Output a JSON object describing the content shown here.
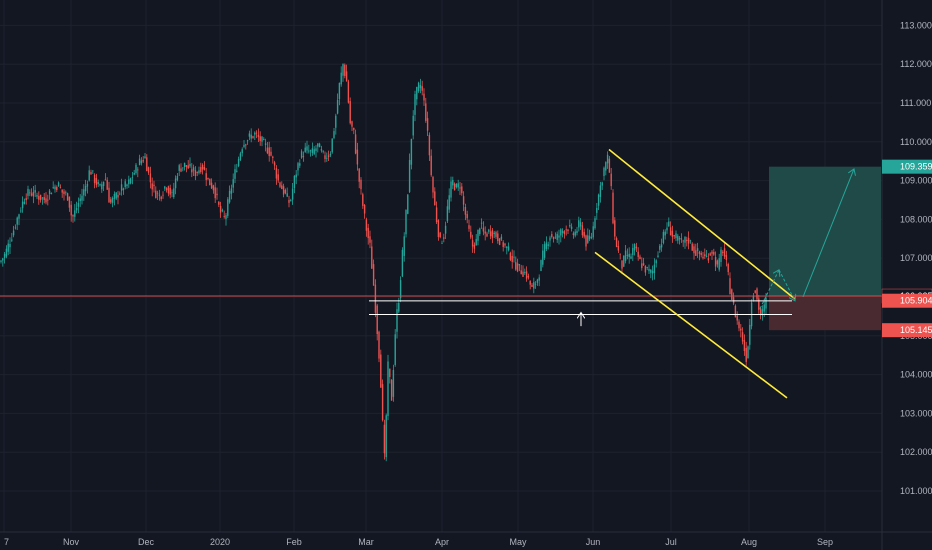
{
  "colors": {
    "background": "#131722",
    "grid": "#1e222d",
    "up": "#26a69a",
    "down": "#ef5350",
    "channel": "#ffeb3b",
    "target_zone": "#1f4a48",
    "stop_zone": "#4a2a31",
    "arrow": "#26a69a",
    "support_line": "#ffffff",
    "current_price_line": "#ef5350"
  },
  "chart_data": {
    "type": "candlestick",
    "title": "",
    "xlabel": "",
    "ylabel": "",
    "ylim": [
      100.2,
      113.4
    ],
    "y_ticks": [
      {
        "value": 101,
        "label": "101.000"
      },
      {
        "value": 102,
        "label": "102.000"
      },
      {
        "value": 103,
        "label": "103.000"
      },
      {
        "value": 104,
        "label": "104.000"
      },
      {
        "value": 105,
        "label": "105.000"
      },
      {
        "value": 106,
        "label": "106.000"
      },
      {
        "value": 107,
        "label": "107.000"
      },
      {
        "value": 108,
        "label": "108.000"
      },
      {
        "value": 109,
        "label": "109.000"
      },
      {
        "value": 110,
        "label": "110.000"
      },
      {
        "value": 111,
        "label": "111.000"
      },
      {
        "value": 112,
        "label": "112.000"
      },
      {
        "value": 113,
        "label": "113.000"
      }
    ],
    "x_ticks": [
      "7",
      "Nov",
      "Dec",
      "2020",
      "Feb",
      "Mar",
      "Apr",
      "May",
      "Jun",
      "Jul",
      "Aug",
      "Sep"
    ],
    "price_tags": [
      {
        "label": "109.359",
        "value": 109.359,
        "color": "#26a69a"
      },
      {
        "label": "106.025",
        "value": 106.025,
        "color": "#131722"
      },
      {
        "label": "105.904",
        "value": 105.904,
        "color": "#ef5350"
      },
      {
        "label": "105.145",
        "value": 105.145,
        "color": "#ef5350"
      }
    ],
    "price_path": [
      [
        0,
        106.9
      ],
      [
        5,
        107.1
      ],
      [
        12,
        107.6
      ],
      [
        18,
        108.1
      ],
      [
        25,
        108.6
      ],
      [
        30,
        108.7
      ],
      [
        38,
        108.6
      ],
      [
        45,
        108.5
      ],
      [
        52,
        108.8
      ],
      [
        58,
        108.9
      ],
      [
        62,
        108.7
      ],
      [
        68,
        108.6
      ],
      [
        72,
        108.0
      ],
      [
        78,
        108.4
      ],
      [
        85,
        108.8
      ],
      [
        90,
        109.3
      ],
      [
        95,
        109.0
      ],
      [
        100,
        108.8
      ],
      [
        105,
        109.1
      ],
      [
        110,
        108.4
      ],
      [
        116,
        108.6
      ],
      [
        122,
        108.8
      ],
      [
        128,
        108.9
      ],
      [
        134,
        109.2
      ],
      [
        140,
        109.5
      ],
      [
        145,
        109.6
      ],
      [
        150,
        109.0
      ],
      [
        155,
        108.7
      ],
      [
        160,
        108.6
      ],
      [
        166,
        108.9
      ],
      [
        172,
        108.6
      ],
      [
        178,
        109.3
      ],
      [
        185,
        109.4
      ],
      [
        190,
        109.3
      ],
      [
        196,
        109.2
      ],
      [
        202,
        109.4
      ],
      [
        208,
        109.0
      ],
      [
        214,
        108.8
      ],
      [
        220,
        108.2
      ],
      [
        225,
        108.0
      ],
      [
        230,
        108.7
      ],
      [
        236,
        109.3
      ],
      [
        242,
        109.9
      ],
      [
        248,
        110.1
      ],
      [
        255,
        110.2
      ],
      [
        262,
        110.0
      ],
      [
        268,
        109.8
      ],
      [
        272,
        109.6
      ],
      [
        278,
        109.0
      ],
      [
        284,
        108.7
      ],
      [
        290,
        108.4
      ],
      [
        294,
        109.0
      ],
      [
        300,
        109.6
      ],
      [
        306,
        109.8
      ],
      [
        312,
        109.7
      ],
      [
        318,
        109.9
      ],
      [
        324,
        109.6
      ],
      [
        330,
        109.7
      ],
      [
        335,
        110.5
      ],
      [
        339,
        111.4
      ],
      [
        343,
        112.0
      ],
      [
        347,
        111.5
      ],
      [
        350,
        110.5
      ],
      [
        354,
        110.2
      ],
      [
        358,
        109.2
      ],
      [
        362,
        108.5
      ],
      [
        366,
        107.8
      ],
      [
        370,
        107.3
      ],
      [
        374,
        106.2
      ],
      [
        377,
        105.2
      ],
      [
        380,
        104.2
      ],
      [
        382,
        103.2
      ],
      [
        384,
        101.6
      ],
      [
        386,
        102.8
      ],
      [
        388,
        104.2
      ],
      [
        390,
        103.8
      ],
      [
        392,
        103.3
      ],
      [
        394,
        104.6
      ],
      [
        396,
        105.4
      ],
      [
        399,
        106.0
      ],
      [
        402,
        107.0
      ],
      [
        405,
        107.8
      ],
      [
        408,
        108.8
      ],
      [
        411,
        110.0
      ],
      [
        414,
        111.0
      ],
      [
        417,
        111.3
      ],
      [
        420,
        111.5
      ],
      [
        423,
        111.2
      ],
      [
        426,
        110.6
      ],
      [
        429,
        109.8
      ],
      [
        432,
        108.9
      ],
      [
        436,
        108.1
      ],
      [
        440,
        107.4
      ],
      [
        444,
        107.6
      ],
      [
        448,
        108.4
      ],
      [
        452,
        109.0
      ],
      [
        456,
        108.8
      ],
      [
        460,
        108.9
      ],
      [
        464,
        108.3
      ],
      [
        468,
        107.8
      ],
      [
        472,
        107.3
      ],
      [
        476,
        107.4
      ],
      [
        480,
        107.9
      ],
      [
        484,
        107.6
      ],
      [
        490,
        107.7
      ],
      [
        496,
        107.6
      ],
      [
        502,
        107.4
      ],
      [
        508,
        107.2
      ],
      [
        514,
        106.9
      ],
      [
        520,
        106.7
      ],
      [
        526,
        106.6
      ],
      [
        532,
        106.2
      ],
      [
        538,
        106.5
      ],
      [
        544,
        107.2
      ],
      [
        550,
        107.6
      ],
      [
        556,
        107.5
      ],
      [
        562,
        107.7
      ],
      [
        568,
        107.8
      ],
      [
        574,
        107.6
      ],
      [
        580,
        107.9
      ],
      [
        586,
        107.4
      ],
      [
        592,
        107.6
      ],
      [
        596,
        108.3
      ],
      [
        600,
        108.8
      ],
      [
        604,
        109.3
      ],
      [
        608,
        109.6
      ],
      [
        611,
        108.8
      ],
      [
        614,
        107.6
      ],
      [
        618,
        107.2
      ],
      [
        622,
        106.8
      ],
      [
        626,
        107.1
      ],
      [
        630,
        107.0
      ],
      [
        634,
        107.3
      ],
      [
        640,
        106.9
      ],
      [
        646,
        106.7
      ],
      [
        652,
        106.6
      ],
      [
        658,
        107.2
      ],
      [
        664,
        107.6
      ],
      [
        668,
        107.9
      ],
      [
        672,
        107.6
      ],
      [
        676,
        107.5
      ],
      [
        682,
        107.4
      ],
      [
        688,
        107.5
      ],
      [
        694,
        107.2
      ],
      [
        700,
        107.1
      ],
      [
        706,
        107.0
      ],
      [
        712,
        107.2
      ],
      [
        718,
        106.7
      ],
      [
        722,
        107.3
      ],
      [
        726,
        106.9
      ],
      [
        730,
        106.2
      ],
      [
        734,
        105.7
      ],
      [
        738,
        105.3
      ],
      [
        742,
        105.0
      ],
      [
        746,
        104.4
      ],
      [
        749,
        105.0
      ],
      [
        752,
        106.1
      ],
      [
        755,
        106.2
      ],
      [
        758,
        105.8
      ],
      [
        761,
        105.5
      ],
      [
        764,
        105.7
      ],
      [
        766,
        105.9
      ]
    ],
    "annotations": {
      "channel_upper": [
        [
          609,
          109.8
        ],
        [
          795,
          105.95
        ]
      ],
      "channel_lower": [
        [
          595,
          107.15
        ],
        [
          787,
          103.4
        ]
      ],
      "support_lines": [
        105.9,
        105.55
      ],
      "current_price_line": 106.025,
      "target_zone": {
        "x": [
          769,
          881
        ],
        "y": [
          106.025,
          109.359
        ]
      },
      "stop_zone": {
        "x": [
          769,
          881
        ],
        "y": [
          105.145,
          106.025
        ]
      },
      "arrows": [
        {
          "path": [
            [
              760,
              105.7
            ],
            [
              779,
              106.7
            ]
          ],
          "type": "dash-up"
        },
        {
          "path": [
            [
              779,
              106.7
            ],
            [
              795,
              105.9
            ]
          ],
          "type": "dash-down"
        },
        {
          "path": [
            [
              803,
              106.0
            ],
            [
              854,
              109.3
            ]
          ],
          "type": "up"
        },
        {
          "path": [
            [
              581,
              105.25
            ],
            [
              581,
              105.6
            ]
          ],
          "type": "small-up"
        }
      ]
    }
  }
}
